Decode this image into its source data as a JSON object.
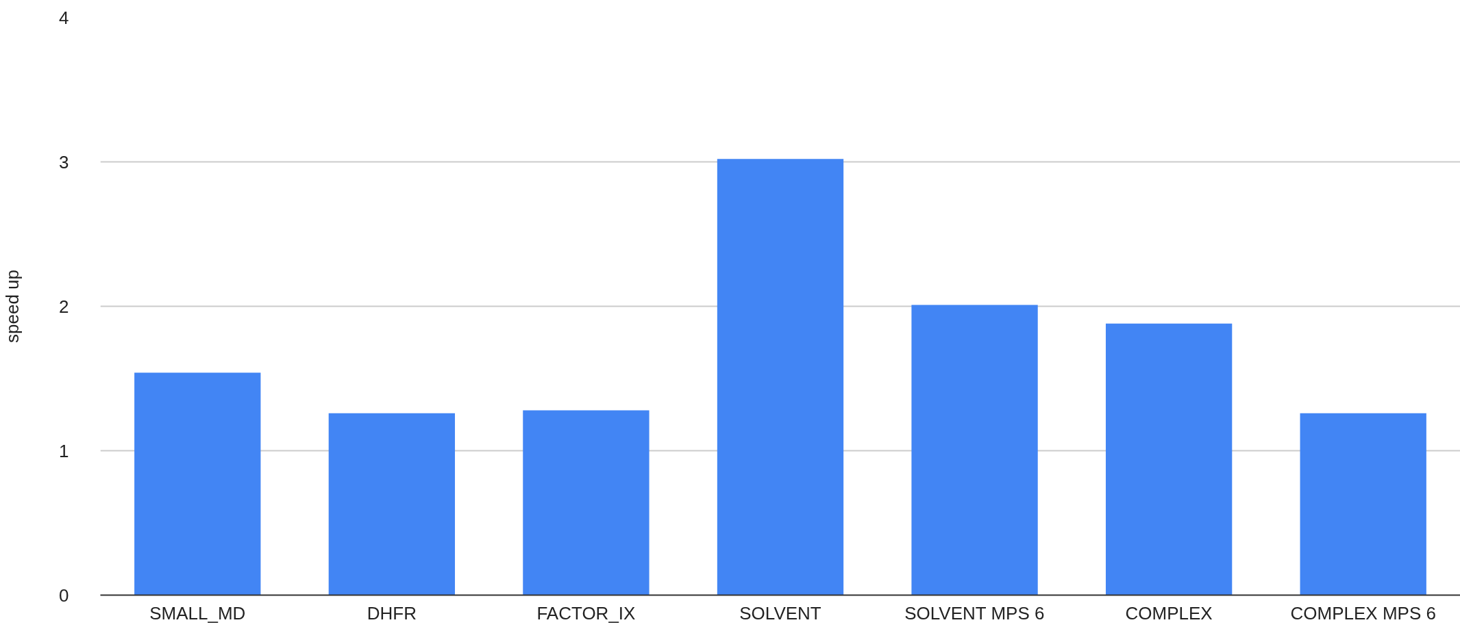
{
  "chart_data": {
    "type": "bar",
    "ylabel": "speed up",
    "categories": [
      "SMALL_MD",
      "DHFR",
      "FACTOR_IX",
      "SOLVENT",
      "SOLVENT MPS 6",
      "COMPLEX",
      "COMPLEX MPS 6"
    ],
    "values": [
      1.54,
      1.26,
      1.28,
      3.02,
      2.01,
      1.88,
      1.26
    ],
    "color": "#4285f4",
    "ylim": [
      0,
      4
    ],
    "yticks": [
      0,
      1,
      2,
      3,
      4
    ],
    "grid": "y"
  }
}
